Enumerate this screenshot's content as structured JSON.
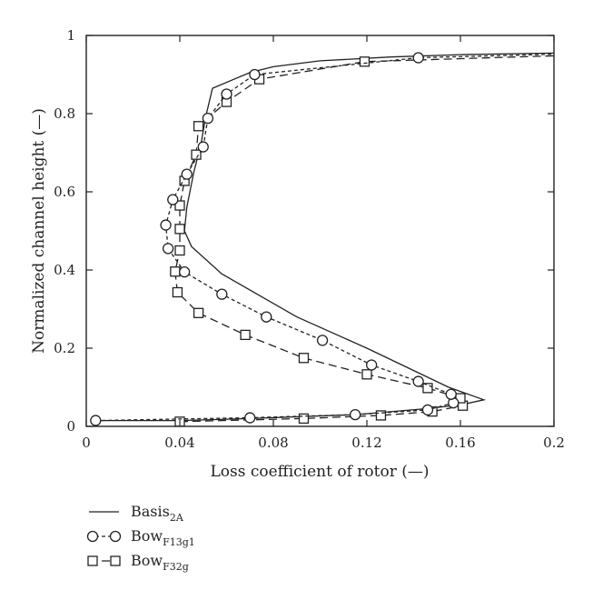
{
  "chart_data": {
    "type": "line",
    "title": "",
    "xlabel": "Loss coefficient of rotor (—)",
    "ylabel": "Normalized channel height (—)",
    "xlim": [
      0,
      0.2
    ],
    "ylim": [
      0,
      1
    ],
    "xticks": [
      "0",
      "0.04",
      "0.08",
      "0.12",
      "0.16",
      "0.2"
    ],
    "yticks": [
      "0",
      "0.2",
      "0.4",
      "0.6",
      "0.8",
      "1"
    ],
    "grid": false,
    "legend_position": "bottom-left, below plot",
    "series": [
      {
        "name": "Basis",
        "name_subscript": "2A",
        "style": "solid",
        "marker": "none",
        "color": "#222222",
        "points": [
          [
            0.005,
            0.015
          ],
          [
            0.04,
            0.015
          ],
          [
            0.07,
            0.02
          ],
          [
            0.115,
            0.03
          ],
          [
            0.145,
            0.045
          ],
          [
            0.16,
            0.055
          ],
          [
            0.17,
            0.068
          ],
          [
            0.155,
            0.1
          ],
          [
            0.12,
            0.2
          ],
          [
            0.09,
            0.28
          ],
          [
            0.058,
            0.39
          ],
          [
            0.045,
            0.46
          ],
          [
            0.042,
            0.5
          ],
          [
            0.043,
            0.56
          ],
          [
            0.046,
            0.65
          ],
          [
            0.049,
            0.72
          ],
          [
            0.051,
            0.79
          ],
          [
            0.054,
            0.865
          ],
          [
            0.07,
            0.905
          ],
          [
            0.08,
            0.92
          ],
          [
            0.1,
            0.935
          ],
          [
            0.13,
            0.945
          ],
          [
            0.16,
            0.951
          ],
          [
            0.2,
            0.955
          ]
        ]
      },
      {
        "name": "Bow",
        "name_subscript": "F13g1",
        "style": "short-dash",
        "marker": "circle",
        "color": "#222222",
        "points": [
          [
            0.004,
            0.015
          ],
          [
            0.07,
            0.022
          ],
          [
            0.115,
            0.03
          ],
          [
            0.146,
            0.042
          ],
          [
            0.157,
            0.06
          ],
          [
            0.156,
            0.082
          ],
          [
            0.142,
            0.115
          ],
          [
            0.122,
            0.157
          ],
          [
            0.101,
            0.22
          ],
          [
            0.077,
            0.28
          ],
          [
            0.058,
            0.338
          ],
          [
            0.042,
            0.395
          ],
          [
            0.035,
            0.455
          ],
          [
            0.034,
            0.515
          ],
          [
            0.037,
            0.58
          ],
          [
            0.043,
            0.645
          ],
          [
            0.05,
            0.715
          ],
          [
            0.052,
            0.788
          ],
          [
            0.06,
            0.85
          ],
          [
            0.072,
            0.9
          ],
          [
            0.142,
            0.943
          ],
          [
            0.2,
            0.952
          ]
        ]
      },
      {
        "name": "Bow",
        "name_subscript": "F32g",
        "style": "long-dash",
        "marker": "square",
        "color": "#222222",
        "points": [
          [
            0.04,
            0.012
          ],
          [
            0.093,
            0.02
          ],
          [
            0.126,
            0.028
          ],
          [
            0.148,
            0.038
          ],
          [
            0.161,
            0.053
          ],
          [
            0.16,
            0.072
          ],
          [
            0.146,
            0.098
          ],
          [
            0.12,
            0.133
          ],
          [
            0.093,
            0.175
          ],
          [
            0.068,
            0.234
          ],
          [
            0.048,
            0.29
          ],
          [
            0.039,
            0.343
          ],
          [
            0.038,
            0.396
          ],
          [
            0.04,
            0.45
          ],
          [
            0.04,
            0.505
          ],
          [
            0.04,
            0.565
          ],
          [
            0.042,
            0.628
          ],
          [
            0.047,
            0.695
          ],
          [
            0.048,
            0.768
          ],
          [
            0.06,
            0.83
          ],
          [
            0.074,
            0.888
          ],
          [
            0.119,
            0.933
          ],
          [
            0.2,
            0.948
          ]
        ]
      }
    ]
  }
}
